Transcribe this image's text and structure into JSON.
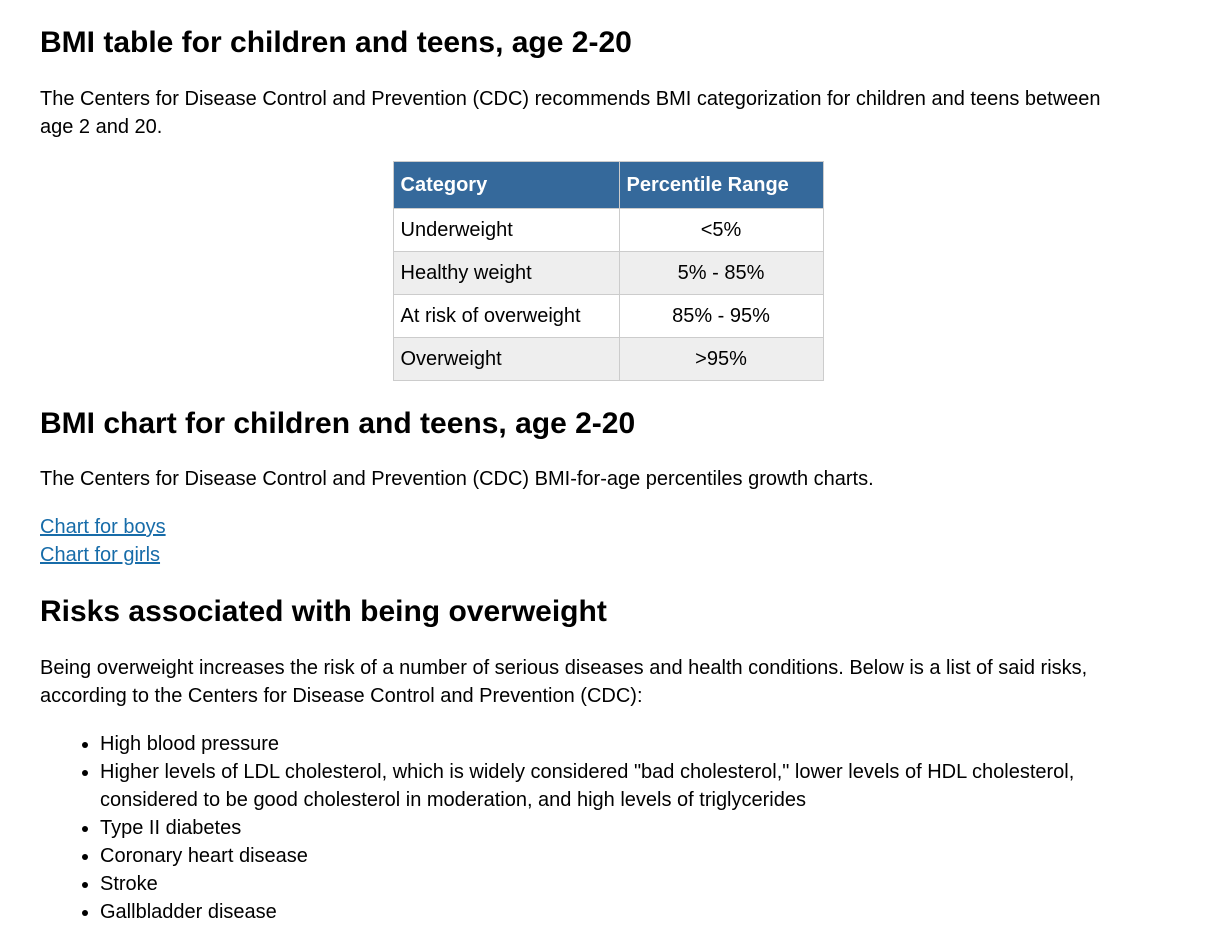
{
  "colors": {
    "table_header_bg": "#35699b",
    "table_header_text": "#ffffff",
    "table_alt_row_bg": "#eeeeee",
    "table_border": "#cccccc",
    "link": "#176ca9"
  },
  "sections": {
    "bmi_table": {
      "heading": "BMI table for children and teens, age 2-20",
      "intro": "The Centers for Disease Control and Prevention (CDC) recommends BMI categorization for children and teens between age 2 and 20."
    },
    "bmi_chart": {
      "heading": "BMI chart for children and teens, age 2-20",
      "intro": "The Centers for Disease Control and Prevention (CDC) BMI-for-age percentiles growth charts.",
      "links": [
        {
          "label": "Chart for boys"
        },
        {
          "label": "Chart for girls"
        }
      ]
    },
    "risks": {
      "heading": "Risks associated with being overweight",
      "intro": "Being overweight increases the risk of a number of serious diseases and health conditions. Below is a list of said risks, according to the Centers for Disease Control and Prevention (CDC):",
      "items": [
        "High blood pressure",
        "Higher levels of LDL cholesterol, which is widely considered \"bad cholesterol,\" lower levels of HDL cholesterol, considered to be good cholesterol in moderation, and high levels of triglycerides",
        "Type II diabetes",
        "Coronary heart disease",
        "Stroke",
        "Gallbladder disease"
      ]
    }
  },
  "table": {
    "headers": [
      "Category",
      "Percentile Range"
    ],
    "rows": [
      [
        "Underweight",
        "<5%"
      ],
      [
        "Healthy weight",
        "5% - 85%"
      ],
      [
        "At risk of overweight",
        "85% - 95%"
      ],
      [
        "Overweight",
        ">95%"
      ]
    ]
  }
}
